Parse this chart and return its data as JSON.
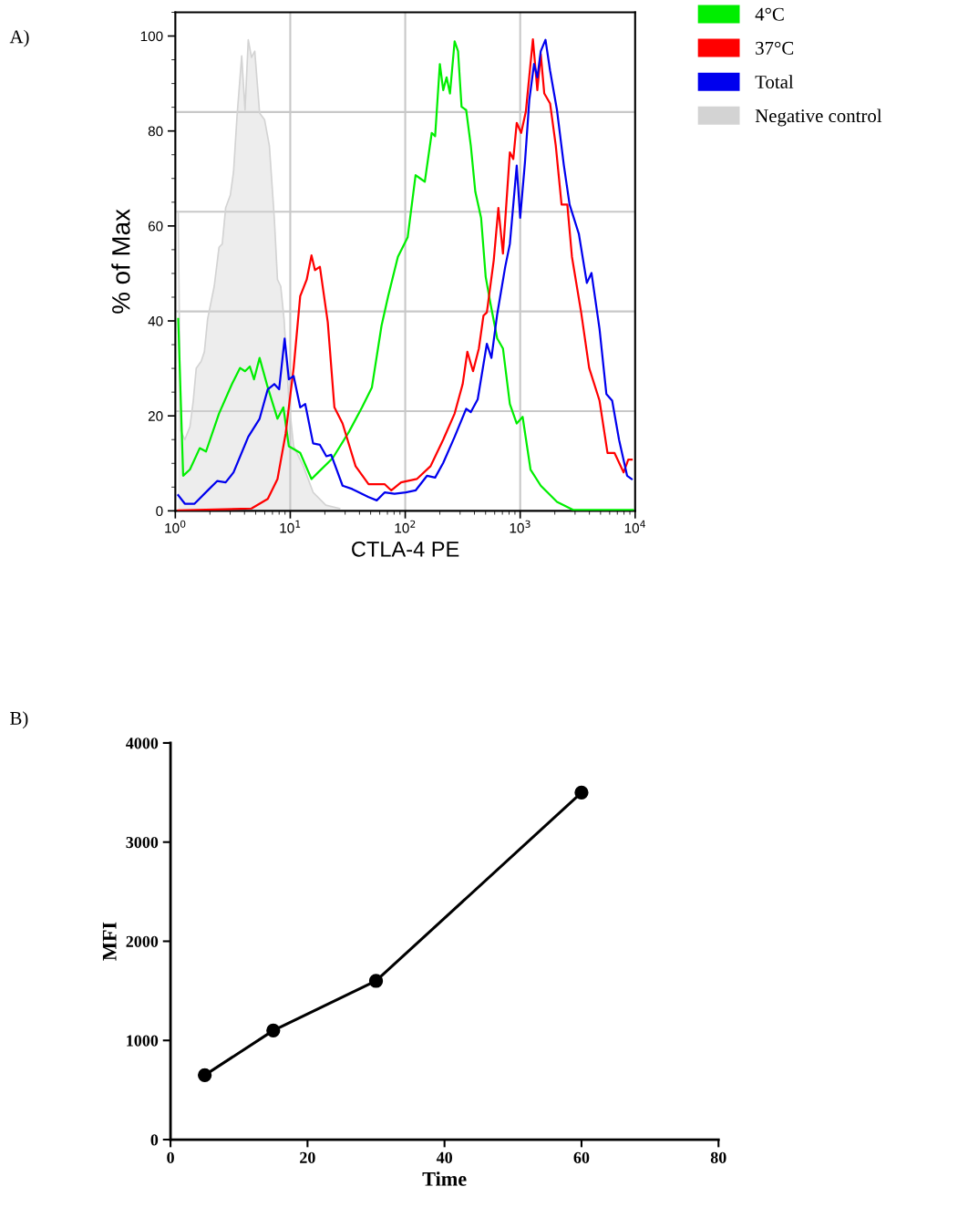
{
  "chart_data": [
    {
      "type": "line",
      "xlabel": "CTLA-4 PE",
      "ylabel": "% of Max",
      "log": "x",
      "xlim": [
        1,
        10000
      ],
      "ylim": [
        0,
        105
      ],
      "xticks": [
        {
          "value": 1,
          "label": "10$^{0}$"
        },
        {
          "value": 10,
          "label": "10$^{1}$"
        },
        {
          "value": 100,
          "label": "10$^{2}$"
        },
        {
          "value": 1000,
          "label": "10$^{3}$"
        },
        {
          "value": 10000,
          "label": "10$^{4}$"
        }
      ],
      "yticks": [
        0,
        20,
        40,
        60,
        80,
        100
      ],
      "grid": "x",
      "legend": "right",
      "annotations": [
        "A)"
      ],
      "ref_lines": [
        {
          "axis": "y",
          "value": 21,
          "color": "#c8c8c8"
        },
        {
          "axis": "y",
          "value": 42,
          "color": "#c8c8c8"
        },
        {
          "axis": "y",
          "value": 63,
          "color": "#c8c8c8"
        },
        {
          "axis": "y",
          "value": 84,
          "color": "#c8c8c8"
        }
      ],
      "series": [
        {
          "name": "Negative control",
          "type": "area",
          "color": "#d3d3d3",
          "x": [
            1.06,
            1.11,
            1.21,
            1.34,
            1.43,
            1.52,
            1.68,
            1.79,
            1.91,
            2.18,
            2.4,
            2.56,
            2.74,
            3.01,
            3.21,
            3.44,
            3.78,
            4.04,
            4.31,
            4.6,
            4.91,
            5.41,
            5.97,
            6.58,
            7.26,
            7.74,
            8.26,
            8.83,
            9.72,
            10.7,
            13,
            15.8,
            20.4,
            26.9
          ],
          "values": [
            63.1,
            17,
            15,
            17.7,
            23,
            30,
            31.5,
            33.5,
            40.4,
            47.3,
            55.5,
            56.2,
            63.8,
            66.5,
            71.4,
            83,
            95.8,
            84.4,
            99.2,
            95.5,
            96.8,
            83.8,
            82.4,
            76.9,
            61.7,
            48.7,
            47.3,
            40.4,
            23.2,
            13.6,
            9.4,
            3.9,
            1.2,
            0.5
          ]
        },
        {
          "name": "4°C",
          "type": "line",
          "color": "#00ee00",
          "x": [
            1.06,
            1.17,
            1.34,
            1.63,
            1.85,
            2.4,
            3.11,
            3.66,
            4.04,
            4.45,
            4.84,
            5.41,
            6.37,
            7.74,
            8.71,
            9.72,
            12.2,
            15.3,
            17.5,
            23.4,
            32.5,
            42.1,
            51.3,
            62.2,
            71,
            86.3,
            105,
            123,
            135,
            148,
            170,
            182,
            200,
            214,
            229,
            245,
            269,
            288,
            309,
            339,
            372,
            407,
            457,
            501,
            550,
            631,
            708,
            813,
            933,
            1050,
            1230,
            1510,
            2090,
            2880,
            9550
          ],
          "values": [
            40.4,
            7.4,
            8.7,
            13.2,
            12.5,
            20.5,
            26.7,
            30.1,
            29.4,
            30.4,
            27.7,
            32.2,
            26,
            19.4,
            21.8,
            13.6,
            12.2,
            6.7,
            8.1,
            11.1,
            16.7,
            21.8,
            26,
            39,
            45.2,
            53.5,
            57.6,
            70.7,
            70,
            69.3,
            79.6,
            78.9,
            94.1,
            88.6,
            91.3,
            87.9,
            98.9,
            96.8,
            85.1,
            84.4,
            76.9,
            67.2,
            61.7,
            49.3,
            43.8,
            36.3,
            34.2,
            22.5,
            18.4,
            19.8,
            8.7,
            5.3,
            1.9,
            0.2,
            0.2
          ]
        },
        {
          "name": "37°C",
          "type": "line",
          "color": "#ff0000",
          "x": [
            1.06,
            4.6,
            6.37,
            7.74,
            9.12,
            10.7,
            12.2,
            13.9,
            15.3,
            16.4,
            18.1,
            21.2,
            24.2,
            28.5,
            37,
            48,
            66.4,
            75.7,
            92,
            126,
            166,
            214,
            269,
            316,
            347,
            389,
            437,
            479,
            513,
            589,
            646,
            708,
            813,
            871,
            933,
            1020,
            1120,
            1290,
            1410,
            1510,
            1620,
            1820,
            2040,
            2290,
            2570,
            2820,
            3390,
            3980,
            4900,
            5750,
            6610,
            7940,
            8710,
            9330
          ],
          "values": [
            0.1,
            0.5,
            2.5,
            6.7,
            16.3,
            30.1,
            45.2,
            48.7,
            53.8,
            50.7,
            51.4,
            39.7,
            21.8,
            18.4,
            9.4,
            5.6,
            5.6,
            4.3,
            6,
            6.7,
            9.4,
            15,
            20.5,
            26.7,
            33.5,
            29.4,
            34.2,
            41.1,
            41.8,
            52.8,
            63.8,
            54.2,
            75.5,
            74.1,
            81.7,
            79.6,
            84.1,
            99.3,
            88.6,
            96.2,
            87.9,
            85.8,
            76.9,
            64.5,
            64.5,
            53.5,
            41.8,
            30.1,
            23.2,
            12.2,
            12.2,
            8.1,
            10.8,
            10.8
          ]
        },
        {
          "name": "Total",
          "type": "line",
          "color": "#0000ee",
          "x": [
            1.06,
            1.21,
            1.47,
            1.97,
            2.32,
            2.74,
            3.21,
            4.31,
            5.41,
            6.37,
            7.26,
            8,
            8.93,
            9.72,
            10.7,
            12.2,
            13.5,
            15.8,
            18.1,
            20.6,
            22.7,
            28.5,
            34.6,
            48,
            56.5,
            66.4,
            80.7,
            101,
            123,
            155,
            182,
            214,
            269,
            339,
            372,
            427,
            513,
            562,
            631,
            741,
            813,
            933,
            1000,
            1100,
            1200,
            1320,
            1410,
            1510,
            1660,
            1820,
            2090,
            2400,
            2690,
            3240,
            3800,
            4170,
            4900,
            5620,
            6310,
            7240,
            8510,
            9330
          ],
          "values": [
            3.3,
            1.5,
            1.5,
            4.6,
            6.3,
            6,
            8.1,
            15.6,
            19.4,
            25.6,
            26.7,
            25.6,
            36.3,
            27.7,
            28.4,
            21.8,
            22.5,
            14.2,
            13.9,
            11.5,
            11.8,
            5.3,
            4.6,
            2.9,
            2.2,
            3.9,
            3.6,
            3.9,
            4.3,
            7.4,
            7,
            10.1,
            15.6,
            21.5,
            20.8,
            23.5,
            35.2,
            32.2,
            41.4,
            51.4,
            56.2,
            72.7,
            61.7,
            73.4,
            86.5,
            94.1,
            91.3,
            96.8,
            99.2,
            92.7,
            84.4,
            72.7,
            64.5,
            58.3,
            48,
            50.1,
            38.3,
            24.6,
            23.2,
            15,
            7.4,
            6.7
          ]
        }
      ]
    },
    {
      "type": "line",
      "xlabel": "Time",
      "ylabel": "MFI",
      "x": [
        5,
        15,
        30,
        60
      ],
      "values": [
        650,
        1100,
        1600,
        3500
      ],
      "color": "#000000",
      "marker": "circle",
      "line_style": "solid",
      "xlim": [
        0,
        80
      ],
      "ylim": [
        0,
        4000
      ],
      "xticks": [
        0,
        20,
        40,
        60,
        80
      ],
      "yticks": [
        0,
        1000,
        2000,
        3000,
        4000
      ],
      "annotations": [
        "B)"
      ]
    }
  ]
}
